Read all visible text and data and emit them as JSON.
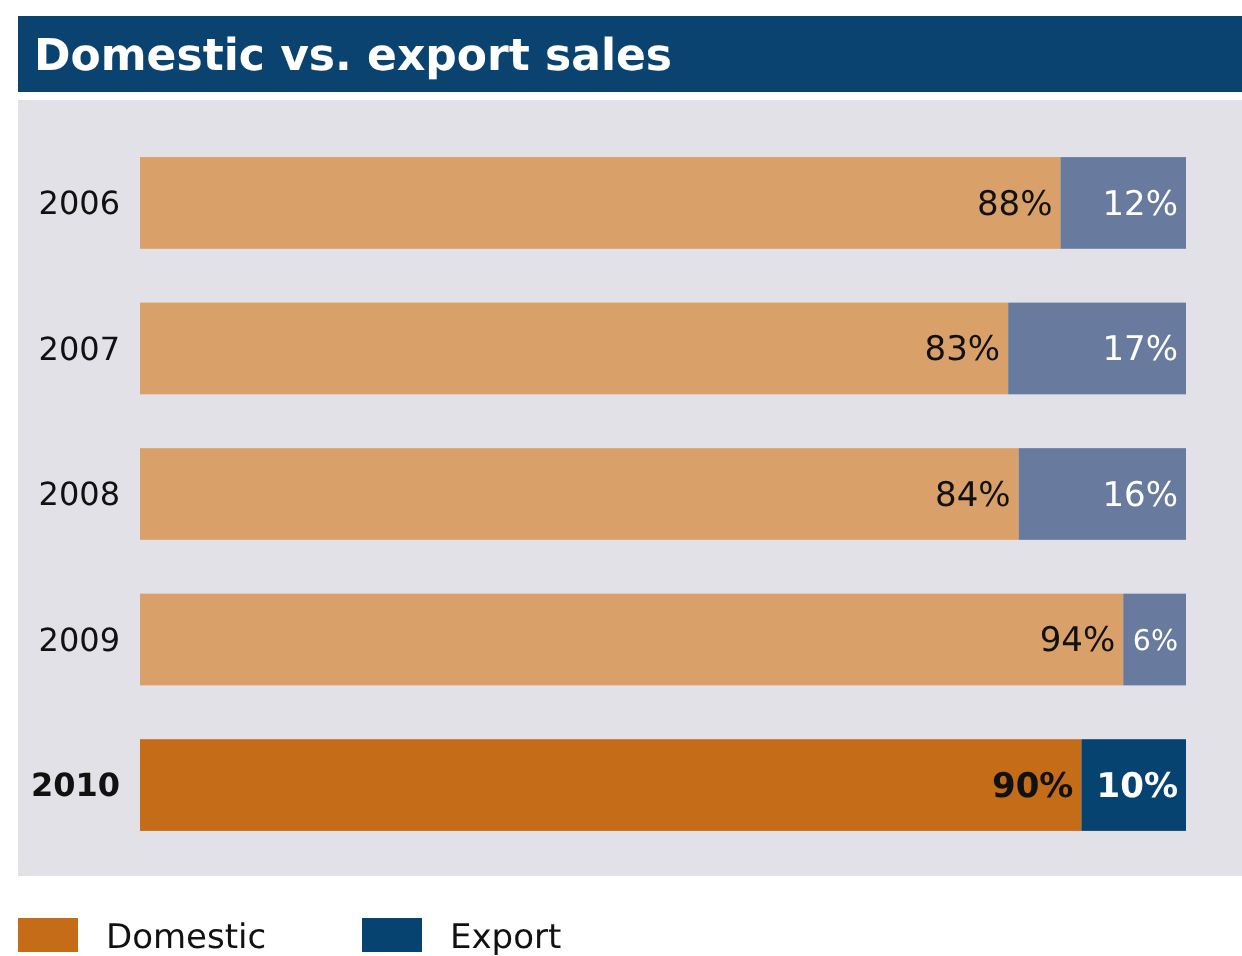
{
  "chart_data": {
    "type": "bar",
    "orientation": "horizontal",
    "stacked": true,
    "title": "Domestic vs. export sales",
    "categories": [
      "2006",
      "2007",
      "2008",
      "2009",
      "2010"
    ],
    "xlim": [
      0,
      100
    ],
    "legend": "bottom left",
    "series": [
      {
        "name": "Domestic",
        "color": "#c46c17",
        "colors": [
          "#d9a06a",
          "#d9a06a",
          "#d9a06a",
          "#d9a06a",
          "#c46c17"
        ],
        "values": [
          88,
          83,
          84,
          94,
          90
        ],
        "value_labels": [
          "88%",
          "83%",
          "84%",
          "94%",
          "90%"
        ]
      },
      {
        "name": "Export",
        "color": "#064370",
        "colors": [
          "#687a9e",
          "#687a9e",
          "#687a9e",
          "#687a9e",
          "#064370"
        ],
        "values": [
          12,
          17,
          16,
          6,
          10
        ],
        "value_labels": [
          "12%",
          "17%",
          "16%",
          "6%",
          "10%"
        ]
      }
    ]
  }
}
